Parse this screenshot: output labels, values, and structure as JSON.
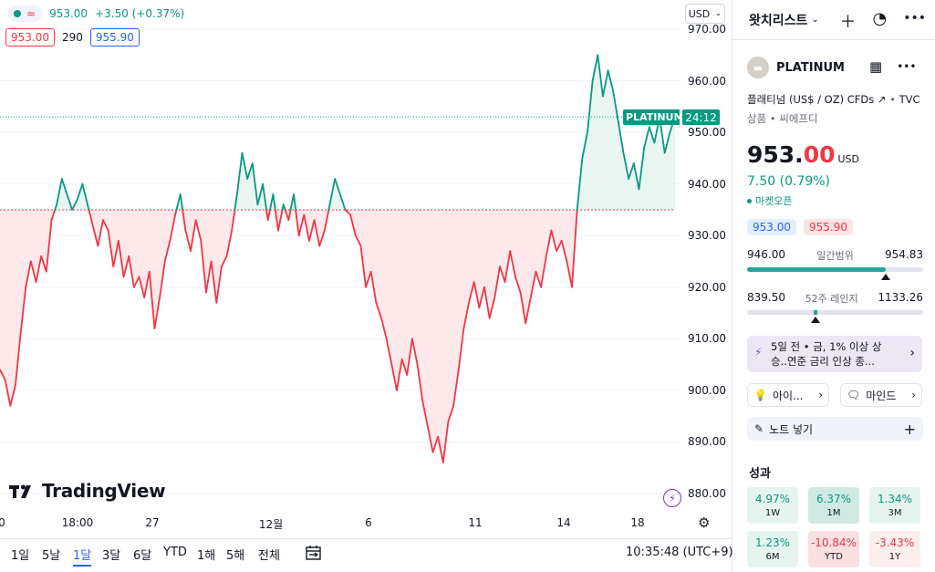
{
  "chart": {
    "legend_price": "953.00",
    "legend_change": "+3.50 (+0.37%)",
    "bid_box": "953.00",
    "spread": "290",
    "ask_box": "955.90",
    "currency_button": "USD",
    "symbol_tag": "PLATINUM",
    "countdown": "24:12",
    "logo_text": "TradingView",
    "y_ticks": [
      "970.00",
      "960.00",
      "950.00",
      "940.00",
      "930.00",
      "920.00",
      "910.00",
      "900.00",
      "890.00",
      "880.00"
    ],
    "x_ticks": [
      "0",
      "18:00",
      "27",
      "12월",
      "6",
      "11",
      "14",
      "18"
    ]
  },
  "chart_data": {
    "type": "area",
    "title": "",
    "baseline": 935.0,
    "ylim": [
      877,
      972
    ],
    "current_price": 953.0,
    "colors": {
      "above": "#089981",
      "below": "#f23645",
      "above_fill": "#e8f5f1",
      "below_fill": "#fde8ea"
    },
    "series": [
      {
        "values": [
          904,
          902,
          897,
          901,
          911,
          920,
          925,
          921,
          926,
          923,
          933,
          936,
          941,
          938,
          935,
          937,
          940,
          936,
          932,
          928,
          933,
          931,
          924,
          929,
          922,
          926,
          920,
          922,
          918,
          923,
          912,
          918,
          925,
          929,
          934,
          938,
          931,
          927,
          933,
          929,
          919,
          925,
          917,
          924,
          926,
          931,
          938,
          946,
          941,
          944,
          936,
          940,
          933,
          938,
          931,
          936,
          933,
          938,
          930,
          934,
          929,
          933,
          928,
          931,
          936,
          941,
          938,
          935,
          934,
          930,
          928,
          920,
          923,
          917,
          914,
          910,
          905,
          900,
          906,
          903,
          910,
          905,
          898,
          893,
          888,
          891,
          886,
          894,
          897,
          904,
          912,
          917,
          921,
          916,
          920,
          914,
          918,
          924,
          921,
          927,
          922,
          919,
          913,
          918,
          923,
          920,
          926,
          931,
          927,
          929,
          925,
          920,
          935,
          945,
          950,
          960,
          965,
          957,
          962,
          958,
          952,
          946,
          941,
          944,
          939,
          947,
          951,
          948,
          953,
          946,
          950,
          953
        ]
      }
    ]
  },
  "bottom": {
    "timeframes": [
      "1일",
      "5날",
      "1달",
      "3달",
      "6달",
      "YTD",
      "1해",
      "5해",
      "전체"
    ],
    "active_timeframe": "1달",
    "clock": "10:35:48 (UTC+9)"
  },
  "panel": {
    "watchlist_title": "왓치리스트",
    "symbol": "PLATINUM",
    "description": "플래티넘 (US$ / OZ) CFDs",
    "exchange": "TVC",
    "category": "상품 • 씨에프디",
    "price_int": "953.",
    "price_dec": "00",
    "currency": "USD",
    "change": "7.50 (0.79%)",
    "market_status": "마켓오픈",
    "bid": "953.00",
    "ask": "955.90",
    "day_low": "946.00",
    "day_label": "일간범위",
    "day_high": "954.83",
    "day_position": 0.79,
    "year_low": "839.50",
    "year_label": "52주 레인지",
    "year_high": "1133.26",
    "year_position": 0.39,
    "news_line1": "5일 전 • 금, 1% 이상 상",
    "news_line2": "승..연준 금리 인상 종...",
    "idea_label": "아이...",
    "minds_label": "마인드",
    "note_label": "노트 넣기",
    "perf_title": "성과",
    "performance": [
      {
        "value": "4.97%",
        "label": "1W"
      },
      {
        "value": "6.37%",
        "label": "1M"
      },
      {
        "value": "1.34%",
        "label": "3M"
      },
      {
        "value": "1.23%",
        "label": "6M"
      },
      {
        "value": "-10.84%",
        "label": "YTD"
      },
      {
        "value": "-3.43%",
        "label": "1Y"
      }
    ]
  }
}
